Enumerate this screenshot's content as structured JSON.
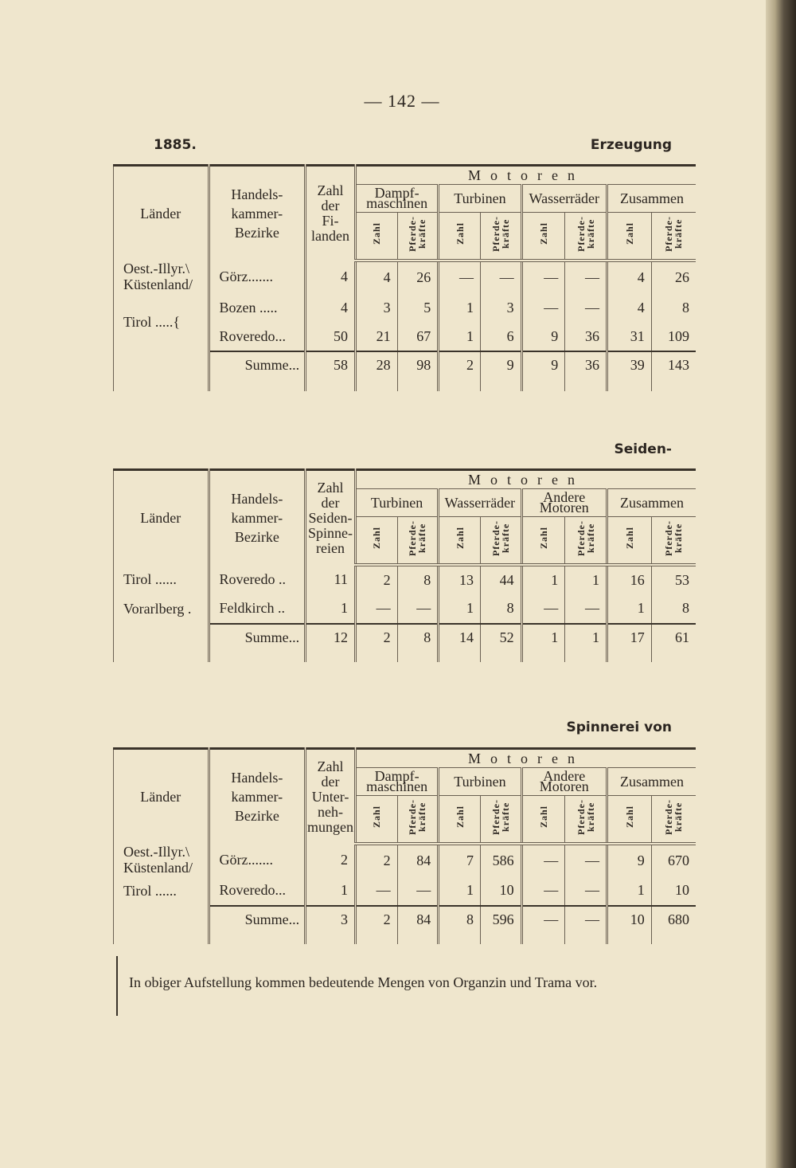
{
  "page_number": "— 142 —",
  "year": "1885.",
  "titles": [
    "Erzeugung",
    "Seiden-",
    "Spinnerei von"
  ],
  "footnote": "In obiger Aufstellung kommen bedeutende Mengen von Organzin und Trama vor.",
  "tables": [
    {
      "col_laender": "Länder",
      "col_bezirke": "Handels-\nkammer-\nBezirke",
      "col_count": "Zahl\nder\nFi-\nlanden",
      "motoren": "Motoren",
      "groups": [
        "Dampf-\nmaschinen",
        "Turbinen",
        "Wasserräder",
        "Zusammen"
      ],
      "sub_zahl": "Zahl",
      "sub_pferde": "Pferde-\nkräfte",
      "regions": [
        {
          "land": "Oest.-Illyr.\\\nKüstenland/",
          "rows": [
            {
              "bezirk": "Görz.......",
              "values": [
                "4",
                "4",
                "26",
                "—",
                "—",
                "—",
                "—",
                "4",
                "26"
              ]
            }
          ]
        },
        {
          "land": "Tirol .....{",
          "rows": [
            {
              "bezirk": "Bozen .....",
              "values": [
                "4",
                "3",
                "5",
                "1",
                "3",
                "—",
                "—",
                "4",
                "8"
              ]
            },
            {
              "bezirk": "Roveredo...",
              "values": [
                "50",
                "21",
                "67",
                "1",
                "6",
                "9",
                "36",
                "31",
                "109"
              ]
            }
          ]
        }
      ],
      "sum": {
        "label": "Summe...",
        "values": [
          "58",
          "28",
          "98",
          "2",
          "9",
          "9",
          "36",
          "39",
          "143"
        ]
      }
    },
    {
      "col_laender": "Länder",
      "col_bezirke": "Handels-\nkammer-\nBezirke",
      "col_count": "Zahl\nder\nSeiden-\nSpinne-\nreien",
      "motoren": "Motoren",
      "groups": [
        "Turbinen",
        "Wasserräder",
        "Andere\nMotoren",
        "Zusammen"
      ],
      "sub_zahl": "Zahl",
      "sub_pferde": "Pferde-\nkräfte",
      "regions": [
        {
          "land": "Tirol ......",
          "rows": [
            {
              "bezirk": "Roveredo ..",
              "values": [
                "11",
                "2",
                "8",
                "13",
                "44",
                "1",
                "1",
                "16",
                "53"
              ]
            }
          ]
        },
        {
          "land": "Vorarlberg .",
          "rows": [
            {
              "bezirk": "Feldkirch ..",
              "values": [
                "1",
                "—",
                "—",
                "1",
                "8",
                "—",
                "—",
                "1",
                "8"
              ]
            }
          ]
        }
      ],
      "sum": {
        "label": "Summe...",
        "values": [
          "12",
          "2",
          "8",
          "14",
          "52",
          "1",
          "1",
          "17",
          "61"
        ]
      }
    },
    {
      "col_laender": "Länder",
      "col_bezirke": "Handels-\nkammer-\nBezirke",
      "col_count": "Zahl\nder\nUnter-\nneh-\nmungen",
      "motoren": "Motoren",
      "groups": [
        "Dampf-\nmaschinen",
        "Turbinen",
        "Andere\nMotoren",
        "Zusammen"
      ],
      "sub_zahl": "Zahl",
      "sub_pferde": "Pferde-\nkräfte",
      "regions": [
        {
          "land": "Oest.-Illyr.\\\nKüstenland/",
          "rows": [
            {
              "bezirk": "Görz.......",
              "values": [
                "2",
                "2",
                "84",
                "7",
                "586",
                "—",
                "—",
                "9",
                "670"
              ]
            }
          ]
        },
        {
          "land": "Tirol ......",
          "rows": [
            {
              "bezirk": "Roveredo...",
              "values": [
                "1",
                "—",
                "—",
                "1",
                "10",
                "—",
                "—",
                "1",
                "10"
              ]
            }
          ]
        }
      ],
      "sum": {
        "label": "Summe...",
        "values": [
          "3",
          "2",
          "84",
          "8",
          "596",
          "—",
          "—",
          "10",
          "680"
        ]
      }
    }
  ]
}
